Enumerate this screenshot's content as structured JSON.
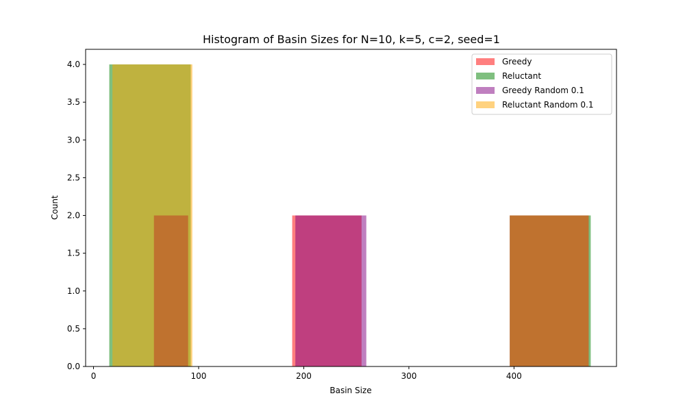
{
  "chart_data": {
    "type": "bar",
    "title": "Histogram of Basin Sizes for N=10, k=5, c=2, seed=1",
    "xlabel": "Basin Size",
    "ylabel": "Count",
    "xlim": [
      -7.5,
      497.5
    ],
    "ylim": [
      0,
      4.2
    ],
    "xticks": [
      0,
      100,
      200,
      300,
      400
    ],
    "yticks": [
      0.0,
      0.5,
      1.0,
      1.5,
      2.0,
      2.5,
      3.0,
      3.5,
      4.0
    ],
    "grid": false,
    "legend_position": "top-right",
    "series": [
      {
        "name": "Greedy",
        "color": "#ff0000",
        "alpha": 0.5,
        "bars": [
          {
            "x0": 57.5,
            "x1": 90.0,
            "count": 2
          },
          {
            "x0": 189.0,
            "x1": 255.0,
            "count": 2
          },
          {
            "x0": 396.0,
            "x1": 471.0,
            "count": 2
          }
        ]
      },
      {
        "name": "Reluctant",
        "color": "#008000",
        "alpha": 0.5,
        "bars": [
          {
            "x0": 15.0,
            "x1": 92.5,
            "count": 4
          },
          {
            "x0": 396.0,
            "x1": 473.0,
            "count": 2
          }
        ]
      },
      {
        "name": "Greedy Random 0.1",
        "color": "#800080",
        "alpha": 0.5,
        "bars": [
          {
            "x0": 57.5,
            "x1": 90.0,
            "count": 2
          },
          {
            "x0": 192.0,
            "x1": 259.5,
            "count": 2
          },
          {
            "x0": 396.0,
            "x1": 471.0,
            "count": 2
          }
        ]
      },
      {
        "name": "Reluctant Random 0.1",
        "color": "#ffa500",
        "alpha": 0.5,
        "bars": [
          {
            "x0": 18.0,
            "x1": 94.0,
            "count": 4
          },
          {
            "x0": 396.0,
            "x1": 471.0,
            "count": 2
          }
        ]
      }
    ]
  }
}
